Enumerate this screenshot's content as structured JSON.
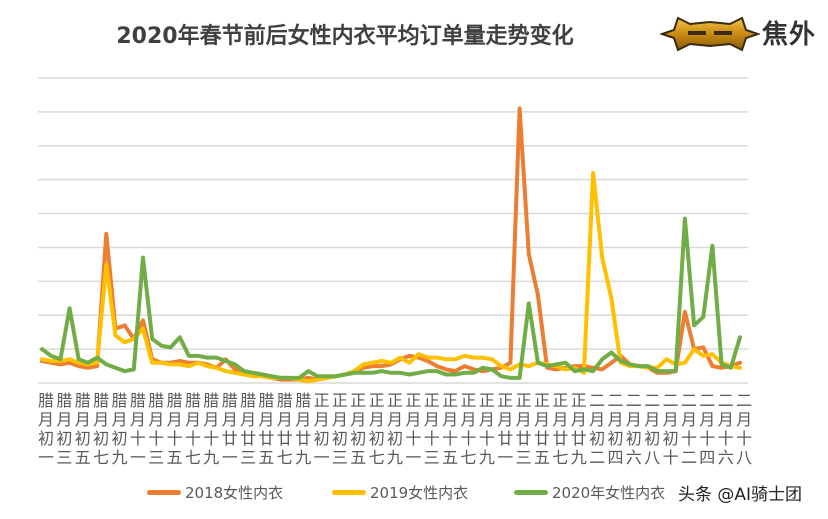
{
  "logo": {
    "text": "焦外"
  },
  "watermark": "头条 @AI骑士团",
  "colors": {
    "s2018": "#ED7D31",
    "s2019": "#FFC000",
    "s2020": "#70AD47",
    "grid": "#D9D9D9",
    "text": "#595959"
  },
  "chart_data": {
    "type": "line",
    "title": "2020年春节前后女性内衣平均订单量走势变化",
    "xlabel": "",
    "ylabel": "",
    "ylim": [
      0,
      9
    ],
    "grid": true,
    "y_tick_labels_shown": false,
    "legend_position": "bottom",
    "x_tick_labels": [
      "腊月初一",
      "腊月初三",
      "腊月初五",
      "腊月初七",
      "腊月初九",
      "腊月十一",
      "腊月十三",
      "腊月十五",
      "腊月十七",
      "腊月十九",
      "腊月廿一",
      "腊月廿三",
      "腊月廿五",
      "腊月廿七",
      "腊月廿九",
      "正月初一",
      "正月初三",
      "正月初五",
      "正月初七",
      "正月初九",
      "正月十一",
      "正月十三",
      "正月十五",
      "正月十七",
      "正月十九",
      "正月廿一",
      "正月廿三",
      "正月廿五",
      "正月廿七",
      "正月廿九",
      "二月初二",
      "二月初四",
      "二月初六",
      "二月初八",
      "二月初十",
      "二月十二",
      "二月十四",
      "二月十六",
      "二月十八"
    ],
    "series": [
      {
        "name": "2018女性内衣",
        "color": "#ED7D31",
        "values": [
          0.65,
          0.6,
          0.55,
          0.6,
          0.5,
          0.45,
          0.5,
          4.4,
          1.6,
          1.7,
          1.3,
          1.85,
          0.7,
          0.6,
          0.6,
          0.65,
          0.6,
          0.6,
          0.55,
          0.45,
          0.7,
          0.4,
          0.3,
          0.25,
          0.2,
          0.15,
          0.1,
          0.1,
          0.1,
          0.15,
          0.1,
          0.15,
          0.2,
          0.25,
          0.3,
          0.45,
          0.5,
          0.5,
          0.55,
          0.7,
          0.8,
          0.75,
          0.65,
          0.5,
          0.4,
          0.35,
          0.5,
          0.4,
          0.35,
          0.4,
          0.45,
          0.6,
          8.1,
          3.8,
          2.6,
          0.45,
          0.4,
          0.45,
          0.5,
          0.5,
          0.45,
          0.4,
          0.6,
          0.8,
          0.55,
          0.5,
          0.45,
          0.3,
          0.3,
          0.35,
          2.1,
          1.0,
          1.05,
          0.5,
          0.45,
          0.5,
          0.6
        ]
      },
      {
        "name": "2019女性内衣",
        "color": "#FFC000",
        "values": [
          0.7,
          0.65,
          0.65,
          0.7,
          0.6,
          0.55,
          0.6,
          3.5,
          1.4,
          1.2,
          1.3,
          1.6,
          0.6,
          0.6,
          0.55,
          0.55,
          0.5,
          0.6,
          0.5,
          0.45,
          0.35,
          0.3,
          0.25,
          0.2,
          0.2,
          0.15,
          0.15,
          0.15,
          0.1,
          0.05,
          0.1,
          0.15,
          0.2,
          0.25,
          0.35,
          0.55,
          0.6,
          0.65,
          0.6,
          0.75,
          0.6,
          0.85,
          0.75,
          0.75,
          0.7,
          0.7,
          0.8,
          0.75,
          0.75,
          0.7,
          0.5,
          0.4,
          0.55,
          0.5,
          0.6,
          0.55,
          0.5,
          0.4,
          0.45,
          0.3,
          6.2,
          3.7,
          2.5,
          0.6,
          0.5,
          0.5,
          0.45,
          0.45,
          0.7,
          0.55,
          0.6,
          1.0,
          0.8,
          0.85,
          0.6,
          0.5,
          0.45
        ]
      },
      {
        "name": "2020年女性内衣",
        "color": "#70AD47",
        "values": [
          1.0,
          0.8,
          0.7,
          2.2,
          0.7,
          0.6,
          0.75,
          0.55,
          0.45,
          0.35,
          0.4,
          3.7,
          1.3,
          1.1,
          1.05,
          1.35,
          0.8,
          0.8,
          0.75,
          0.75,
          0.65,
          0.55,
          0.35,
          0.3,
          0.25,
          0.2,
          0.15,
          0.15,
          0.15,
          0.35,
          0.2,
          0.2,
          0.2,
          0.25,
          0.3,
          0.3,
          0.3,
          0.35,
          0.3,
          0.3,
          0.25,
          0.3,
          0.35,
          0.35,
          0.25,
          0.25,
          0.3,
          0.3,
          0.45,
          0.4,
          0.2,
          0.15,
          0.15,
          2.35,
          0.6,
          0.5,
          0.55,
          0.6,
          0.35,
          0.4,
          0.35,
          0.7,
          0.9,
          0.65,
          0.55,
          0.5,
          0.5,
          0.35,
          0.35,
          0.35,
          4.85,
          1.7,
          1.95,
          4.05,
          0.55,
          0.45,
          1.35
        ]
      }
    ]
  }
}
